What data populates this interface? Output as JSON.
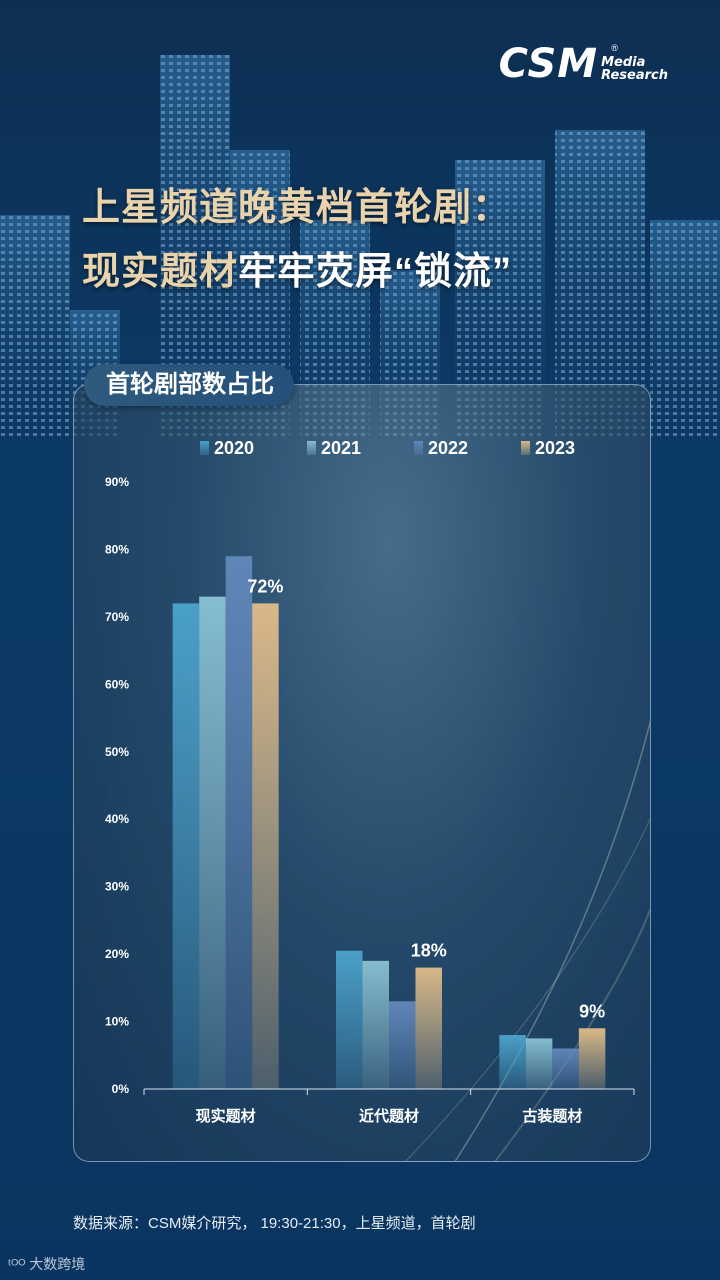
{
  "logo": {
    "main": "CSM",
    "sub_line1": "Media",
    "sub_line2": "Research",
    "reg": "®"
  },
  "title": {
    "line1": "上星频道晚黄档首轮剧：",
    "line2a": "现实题材",
    "line2b": "牢牢荧屏“锁流”"
  },
  "panel_tag": "首轮剧部数占比",
  "colors": {
    "2020": "#4aa0c8",
    "2021": "#86bdcf",
    "2022": "#5f86b8",
    "2023": "#d9b888"
  },
  "chart_data": {
    "type": "bar",
    "categories": [
      "现实题材",
      "近代题材",
      "古装题材"
    ],
    "series": [
      {
        "name": "2020",
        "values": [
          72,
          20.5,
          8
        ]
      },
      {
        "name": "2021",
        "values": [
          73,
          19,
          7.5
        ]
      },
      {
        "name": "2022",
        "values": [
          79,
          13,
          6
        ]
      },
      {
        "name": "2023",
        "values": [
          72,
          18,
          9
        ]
      }
    ],
    "data_labels": [
      "72%",
      "18%",
      "9%"
    ],
    "yticks": [
      "0%",
      "10%",
      "20%",
      "30%",
      "40%",
      "50%",
      "60%",
      "70%",
      "80%",
      "90%"
    ],
    "ylim": [
      0,
      90
    ],
    "legend_position": "top",
    "grid": false
  },
  "source": "数据来源：CSM媒介研究， 19:30-21:30，上星频道，首轮剧",
  "watermark": "大数跨境"
}
